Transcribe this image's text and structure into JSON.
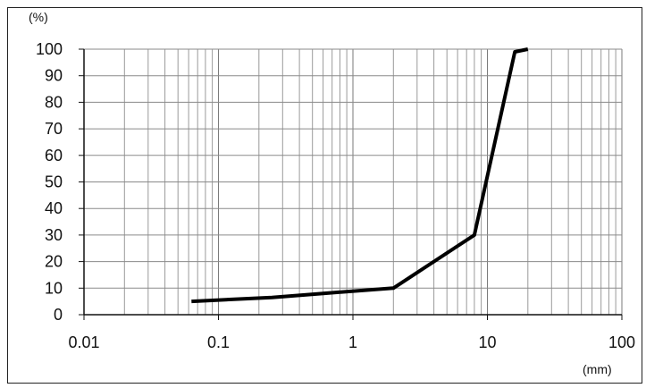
{
  "chart_data": {
    "type": "line",
    "x_scale": "log",
    "xlim": [
      0.01,
      100
    ],
    "ylim": [
      0,
      100
    ],
    "x_ticks": [
      "0.01",
      "0.1",
      "1",
      "10",
      "100"
    ],
    "y_ticks": [
      "0",
      "10",
      "20",
      "30",
      "40",
      "50",
      "60",
      "70",
      "80",
      "90",
      "100"
    ],
    "x_unit": "(mm)",
    "y_unit": "(%)",
    "grid": true,
    "line_color": "#000000",
    "series": [
      {
        "x": [
          0.063,
          0.25,
          0.6,
          2.0,
          8.0,
          16.0,
          20.0
        ],
        "y": [
          5,
          6.5,
          8,
          10,
          30,
          99,
          100
        ]
      }
    ]
  }
}
